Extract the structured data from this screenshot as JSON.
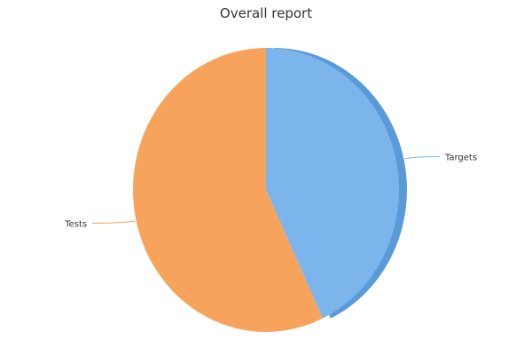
{
  "chart_data": {
    "type": "pie",
    "title": "Overall report",
    "slices": [
      {
        "label": "Targets",
        "value": 43,
        "color": "#7cb5ec",
        "depth_color": "#5a9ad6"
      },
      {
        "label": "Tests",
        "value": 57,
        "color": "#f7a35c",
        "depth_color": "#d98b43"
      }
    ],
    "start_angle_deg": 0,
    "direction": "clockwise",
    "legend": "none",
    "labels": "outside-with-connectors"
  }
}
